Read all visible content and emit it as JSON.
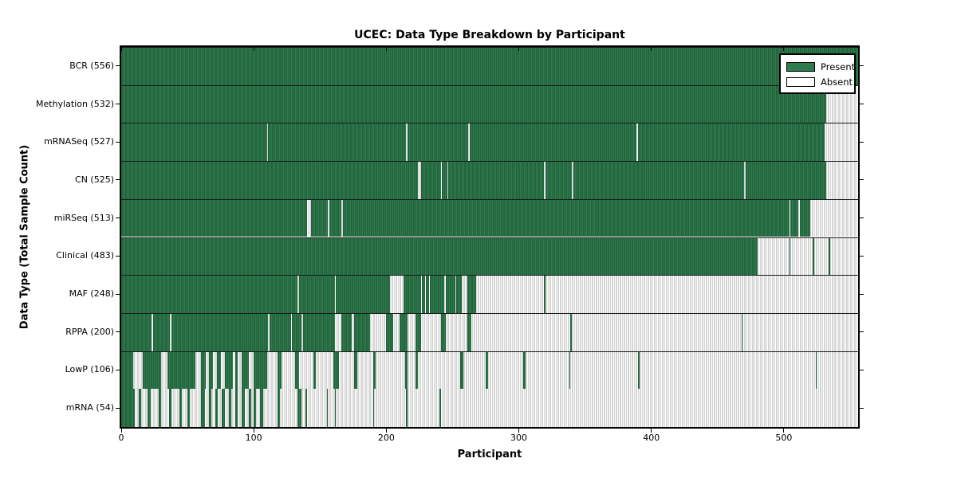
{
  "chart": {
    "title": "UCEC: Data Type Breakdown by Participant",
    "x_axis_label": "Participant",
    "y_axis_label": "Data Type (Total Sample Count)"
  },
  "legend": {
    "present_label": "Present",
    "absent_label": "Absent"
  },
  "chart_data": {
    "type": "heatmap",
    "title": "UCEC: Data Type Breakdown by Participant",
    "xlabel": "Participant",
    "ylabel": "Data Type (Total Sample Count)",
    "x_ticks": [
      0,
      100,
      200,
      300,
      400,
      500
    ],
    "x_max": 556,
    "legend_entries": [
      "Present",
      "Absent"
    ],
    "legend_position": "upper right",
    "colors": {
      "present_fill": "#2e7c4d",
      "present_edge": "#1a4d30",
      "absent_fill": "#ffffff",
      "absent_edge": "#a8a8a8",
      "frame": "#000000"
    },
    "rows": [
      {
        "label": "BCR",
        "count": 556,
        "present_segments": [
          [
            0,
            556
          ]
        ]
      },
      {
        "label": "Methylation",
        "count": 532,
        "present_segments": [
          [
            0,
            532
          ]
        ]
      },
      {
        "label": "mRNASeq",
        "count": 527,
        "present_segments": [
          [
            0,
            110
          ],
          [
            111,
            215
          ],
          [
            216,
            262
          ],
          [
            263,
            389
          ],
          [
            390,
            531
          ]
        ]
      },
      {
        "label": "CN",
        "count": 525,
        "present_segments": [
          [
            0,
            224
          ],
          [
            226,
            241
          ],
          [
            242,
            246
          ],
          [
            247,
            319
          ],
          [
            320,
            340
          ],
          [
            341,
            470
          ],
          [
            471,
            532
          ]
        ]
      },
      {
        "label": "miRSeq",
        "count": 513,
        "present_segments": [
          [
            0,
            140
          ],
          [
            143,
            156
          ],
          [
            157,
            166
          ],
          [
            167,
            504
          ],
          [
            505,
            511
          ],
          [
            512,
            520
          ]
        ]
      },
      {
        "label": "Clinical",
        "count": 483,
        "present_segments": [
          [
            0,
            480
          ],
          [
            504,
            505
          ],
          [
            522,
            523
          ],
          [
            534,
            535
          ]
        ]
      },
      {
        "label": "MAF",
        "count": 248,
        "present_segments": [
          [
            0,
            133
          ],
          [
            134,
            161
          ],
          [
            162,
            203
          ],
          [
            213,
            226
          ],
          [
            227,
            229
          ],
          [
            230,
            232
          ],
          [
            233,
            244
          ],
          [
            245,
            252
          ],
          [
            253,
            257
          ],
          [
            261,
            268
          ],
          [
            319,
            320
          ]
        ]
      },
      {
        "label": "RPPA",
        "count": 200,
        "present_segments": [
          [
            0,
            23
          ],
          [
            24,
            37
          ],
          [
            38,
            111
          ],
          [
            112,
            128
          ],
          [
            129,
            136
          ],
          [
            137,
            161
          ],
          [
            166,
            174
          ],
          [
            176,
            188
          ],
          [
            200,
            205
          ],
          [
            210,
            216
          ],
          [
            222,
            226
          ],
          [
            241,
            245
          ],
          [
            261,
            264
          ],
          [
            339,
            340
          ],
          [
            468,
            469
          ]
        ]
      },
      {
        "label": "LowP",
        "count": 106,
        "present_segments": [
          [
            0,
            9
          ],
          [
            16,
            30
          ],
          [
            35,
            56
          ],
          [
            60,
            64
          ],
          [
            66,
            69
          ],
          [
            72,
            75
          ],
          [
            78,
            84
          ],
          [
            86,
            88
          ],
          [
            91,
            96
          ],
          [
            100,
            110
          ],
          [
            118,
            121
          ],
          [
            131,
            134
          ],
          [
            145,
            147
          ],
          [
            160,
            164
          ],
          [
            176,
            178
          ],
          [
            190,
            192
          ],
          [
            214,
            216
          ],
          [
            222,
            224
          ],
          [
            256,
            258
          ],
          [
            275,
            277
          ],
          [
            303,
            305
          ],
          [
            338,
            339
          ],
          [
            390,
            391
          ],
          [
            524,
            525
          ]
        ]
      },
      {
        "label": "mRNA",
        "count": 54,
        "present_segments": [
          [
            0,
            10
          ],
          [
            13,
            15
          ],
          [
            20,
            22
          ],
          [
            28,
            30
          ],
          [
            36,
            38
          ],
          [
            44,
            46
          ],
          [
            50,
            52
          ],
          [
            60,
            63
          ],
          [
            66,
            68
          ],
          [
            71,
            73
          ],
          [
            76,
            78
          ],
          [
            81,
            83
          ],
          [
            86,
            88
          ],
          [
            91,
            93
          ],
          [
            96,
            98
          ],
          [
            100,
            102
          ],
          [
            105,
            107
          ],
          [
            118,
            120
          ],
          [
            133,
            136
          ],
          [
            139,
            140
          ],
          [
            155,
            156
          ],
          [
            161,
            162
          ],
          [
            190,
            191
          ],
          [
            215,
            216
          ],
          [
            240,
            241
          ]
        ]
      }
    ]
  }
}
